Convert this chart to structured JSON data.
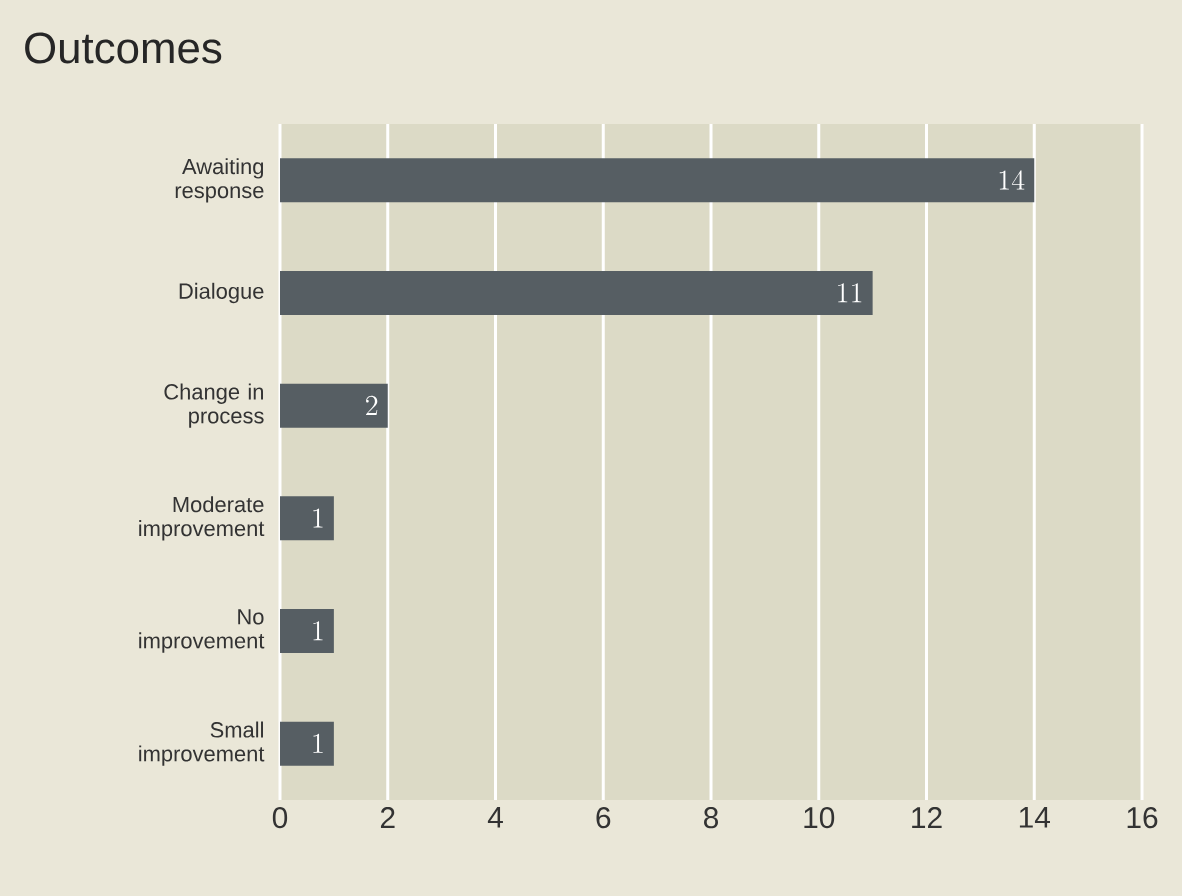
{
  "chart_data": {
    "type": "bar",
    "orientation": "horizontal",
    "title": "Outcomes",
    "categories": [
      "Awaiting response",
      "Dialogue",
      "Change in process",
      "Moderate improvement",
      "No improvement",
      "Small improvement"
    ],
    "values": [
      14,
      11,
      2,
      1,
      1,
      1
    ],
    "color": "#565e63",
    "xlim": [
      0,
      16
    ],
    "xticks": [
      0,
      2,
      4,
      6,
      8,
      10,
      12,
      14,
      16
    ],
    "grid": "x",
    "data_labels": true
  }
}
